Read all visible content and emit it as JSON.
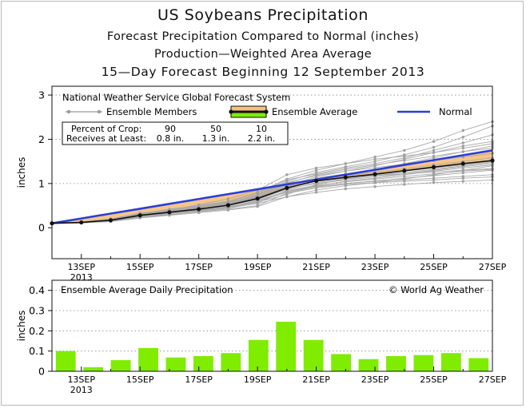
{
  "titles": {
    "main": "US Soybeans Precipitation",
    "line2": "Forecast Precipitation Compared to Normal (inches)",
    "line3": "Production—Weighted Area Average",
    "line4": "15—Day Forecast Beginning 12 September 2013"
  },
  "chart_data": [
    {
      "type": "line",
      "ylabel": "inches",
      "ylim": [
        -0.7,
        3.2
      ],
      "yticks": [
        0,
        1,
        2,
        3
      ],
      "grid": "horizontal dotted at 1, 2, 3",
      "x": [
        12,
        13,
        14,
        15,
        16,
        17,
        18,
        19,
        20,
        21,
        22,
        23,
        24,
        25,
        26,
        27
      ],
      "xlim": [
        12,
        27
      ],
      "xtick_labels": [
        {
          "x": 13,
          "label": "13SEP",
          "sub": "2013"
        },
        {
          "x": 15,
          "label": "15SEP"
        },
        {
          "x": 17,
          "label": "17SEP"
        },
        {
          "x": 19,
          "label": "19SEP"
        },
        {
          "x": 21,
          "label": "21SEP"
        },
        {
          "x": 23,
          "label": "23SEP"
        },
        {
          "x": 25,
          "label": "25SEP"
        },
        {
          "x": 27,
          "label": "27SEP"
        }
      ],
      "annotations": {
        "system": "National Weather Service Global Forecast System",
        "legend_members": "Ensemble Members",
        "legend_average": "Ensemble Average",
        "legend_normal": "Normal",
        "crop_table": {
          "row1_label": "Percent of Crop:",
          "row2_label": "Receives at Least:",
          "percents": [
            "90",
            "50",
            "10"
          ],
          "amounts": [
            "0.8 in.",
            "1.3 in.",
            "2.2 in."
          ]
        }
      },
      "series": [
        {
          "name": "Normal",
          "color": "#2b3fd6",
          "values": [
            0.1,
            0.21,
            0.32,
            0.43,
            0.54,
            0.65,
            0.76,
            0.87,
            0.98,
            1.09,
            1.2,
            1.31,
            1.42,
            1.53,
            1.64,
            1.75
          ]
        },
        {
          "name": "Ensemble Average",
          "color": "#111111",
          "values": [
            0.1,
            0.12,
            0.17,
            0.28,
            0.35,
            0.42,
            0.51,
            0.66,
            0.9,
            1.06,
            1.14,
            1.21,
            1.29,
            1.37,
            1.45,
            1.52
          ]
        }
      ],
      "members": [
        [
          0.1,
          0.12,
          0.14,
          0.22,
          0.3,
          0.38,
          0.45,
          0.55,
          0.7,
          0.85,
          0.95,
          1.02,
          1.1,
          1.2,
          1.3,
          1.4
        ],
        [
          0.1,
          0.12,
          0.18,
          0.26,
          0.34,
          0.4,
          0.47,
          0.6,
          0.82,
          0.95,
          1.05,
          1.12,
          1.2,
          1.28,
          1.35,
          1.42
        ],
        [
          0.1,
          0.13,
          0.2,
          0.33,
          0.4,
          0.48,
          0.57,
          0.72,
          0.98,
          1.1,
          1.18,
          1.25,
          1.33,
          1.42,
          1.5,
          1.58
        ],
        [
          0.1,
          0.11,
          0.16,
          0.25,
          0.3,
          0.36,
          0.42,
          0.5,
          0.78,
          0.9,
          0.98,
          1.02,
          1.05,
          1.08,
          1.12,
          1.15
        ],
        [
          0.1,
          0.12,
          0.18,
          0.3,
          0.38,
          0.5,
          0.6,
          0.8,
          1.1,
          1.3,
          1.45,
          1.6,
          1.75,
          1.95,
          2.2,
          2.4
        ],
        [
          0.1,
          0.12,
          0.17,
          0.28,
          0.36,
          0.45,
          0.55,
          0.75,
          1.05,
          1.25,
          1.38,
          1.5,
          1.65,
          1.82,
          2.05,
          2.3
        ],
        [
          0.1,
          0.12,
          0.19,
          0.3,
          0.37,
          0.44,
          0.52,
          0.68,
          0.95,
          1.15,
          1.28,
          1.4,
          1.55,
          1.7,
          1.85,
          1.95
        ],
        [
          0.1,
          0.11,
          0.15,
          0.24,
          0.32,
          0.4,
          0.48,
          0.6,
          0.8,
          0.92,
          1.0,
          1.05,
          1.08,
          1.12,
          1.16,
          1.2
        ],
        [
          0.1,
          0.12,
          0.16,
          0.26,
          0.33,
          0.41,
          0.5,
          0.65,
          0.88,
          1.0,
          1.08,
          1.15,
          1.22,
          1.3,
          1.38,
          1.45
        ],
        [
          0.1,
          0.12,
          0.18,
          0.3,
          0.4,
          0.52,
          0.65,
          0.85,
          1.2,
          1.35,
          1.45,
          1.55,
          1.62,
          1.7,
          1.8,
          1.9
        ],
        [
          0.1,
          0.11,
          0.14,
          0.22,
          0.28,
          0.34,
          0.4,
          0.48,
          0.7,
          0.8,
          0.88,
          0.93,
          0.98,
          1.02,
          1.05,
          1.08
        ],
        [
          0.1,
          0.12,
          0.18,
          0.27,
          0.35,
          0.43,
          0.53,
          0.7,
          0.92,
          1.12,
          1.22,
          1.32,
          1.45,
          1.58,
          1.72,
          1.85
        ],
        [
          0.1,
          0.13,
          0.2,
          0.32,
          0.42,
          0.5,
          0.58,
          0.7,
          0.95,
          1.05,
          1.12,
          1.18,
          1.25,
          1.32,
          1.4,
          1.48
        ],
        [
          0.1,
          0.12,
          0.16,
          0.25,
          0.33,
          0.39,
          0.46,
          0.58,
          0.75,
          0.98,
          1.1,
          1.2,
          1.28,
          1.35,
          1.42,
          1.5
        ],
        [
          0.1,
          0.12,
          0.17,
          0.27,
          0.34,
          0.42,
          0.5,
          0.64,
          0.86,
          1.02,
          1.1,
          1.18,
          1.22,
          1.26,
          1.3,
          1.34
        ],
        [
          0.1,
          0.12,
          0.18,
          0.29,
          0.36,
          0.44,
          0.54,
          0.72,
          1.0,
          1.2,
          1.32,
          1.42,
          1.52,
          1.62,
          1.72,
          1.8
        ],
        [
          0.1,
          0.11,
          0.15,
          0.23,
          0.29,
          0.37,
          0.44,
          0.56,
          0.84,
          0.96,
          1.04,
          1.1,
          1.16,
          1.22,
          1.28,
          1.32
        ],
        [
          0.1,
          0.12,
          0.17,
          0.28,
          0.36,
          0.46,
          0.58,
          0.78,
          1.08,
          1.22,
          1.35,
          1.45,
          1.58,
          1.75,
          1.92,
          2.1
        ],
        [
          0.1,
          0.12,
          0.16,
          0.26,
          0.33,
          0.4,
          0.47,
          0.62,
          0.82,
          0.94,
          1.0,
          1.06,
          1.12,
          1.18,
          1.24,
          1.3
        ],
        [
          0.1,
          0.12,
          0.18,
          0.31,
          0.39,
          0.47,
          0.56,
          0.74,
          1.02,
          1.18,
          1.28,
          1.36,
          1.44,
          1.52,
          1.6,
          1.68
        ]
      ]
    },
    {
      "type": "bar",
      "title": "Ensemble Average Daily Precipitation",
      "credit": "© World Ag Weather",
      "ylabel": "inches",
      "ylim": [
        0,
        0.45
      ],
      "yticks": [
        "0",
        "0.1",
        "0.2",
        "0.3",
        "0.4"
      ],
      "grid": "horizontal dotted",
      "bar_color": "#7fec00",
      "x": [
        12,
        13,
        14,
        15,
        16,
        17,
        18,
        19,
        20,
        21,
        22,
        23,
        24,
        25,
        26,
        27
      ],
      "values": [
        0.1,
        0.02,
        0.055,
        0.115,
        0.068,
        0.075,
        0.09,
        0.155,
        0.245,
        0.155,
        0.085,
        0.06,
        0.075,
        0.08,
        0.09,
        0.065
      ]
    }
  ]
}
